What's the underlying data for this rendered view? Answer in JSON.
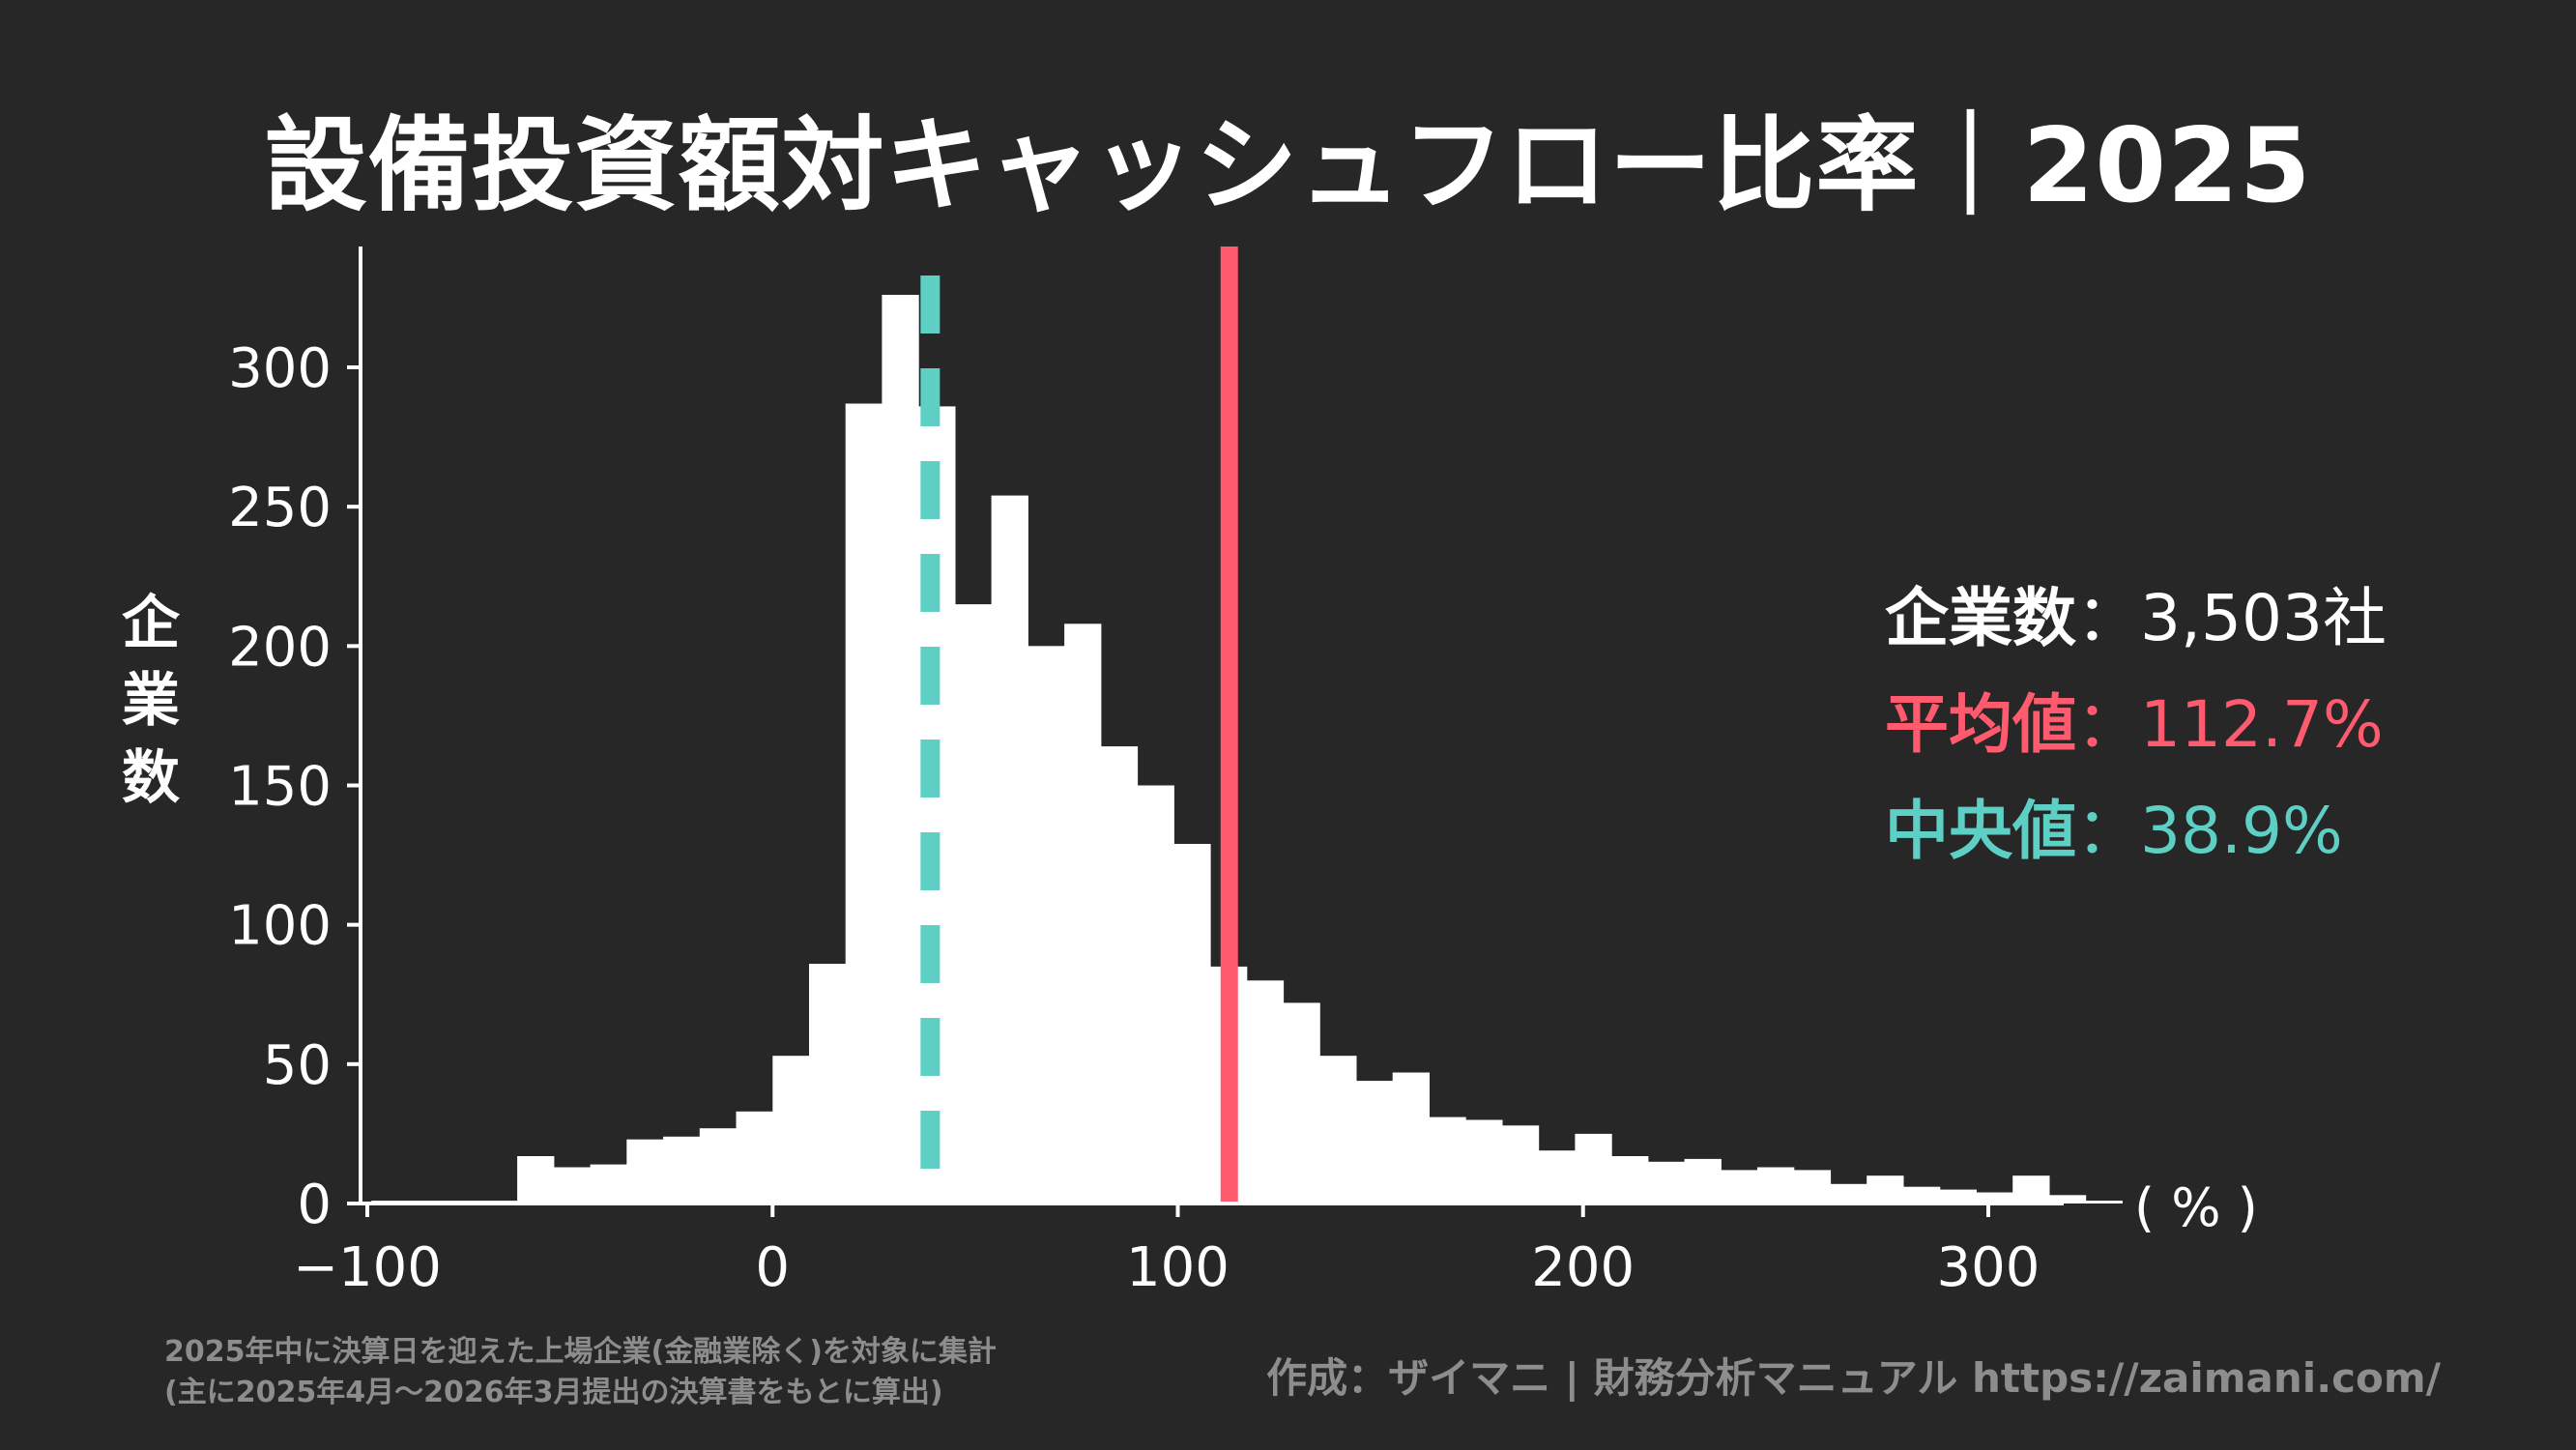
{
  "title": "設備投資額対キャッシュフロー比率｜2025",
  "chart_data": {
    "type": "bar",
    "xlabel": "( % )",
    "ylabel": "企業数",
    "xlim": [
      -100,
      310
    ],
    "ylim": [
      0,
      340
    ],
    "x_ticks": [
      "−100",
      "0",
      "100",
      "200",
      "300"
    ],
    "x_tick_values": [
      -100,
      0,
      100,
      200,
      300
    ],
    "y_ticks": [
      "0",
      "50",
      "100",
      "150",
      "200",
      "250",
      "300"
    ],
    "y_tick_values": [
      0,
      50,
      100,
      150,
      200,
      250,
      300
    ],
    "bin_width": 9,
    "bin_start": -99,
    "values": [
      1,
      1,
      1,
      1,
      17,
      13,
      14,
      23,
      24,
      27,
      33,
      53,
      86,
      287,
      326,
      286,
      215,
      254,
      200,
      208,
      164,
      150,
      129,
      85,
      80,
      72,
      53,
      44,
      47,
      31,
      30,
      28,
      19,
      25,
      17,
      15,
      16,
      12,
      13,
      12,
      7,
      10,
      6,
      5,
      4,
      10,
      3,
      1
    ],
    "mean": 112.7,
    "median": 38.9,
    "mean_color": "#ff5a6e",
    "median_color": "#5ecfc4",
    "bar_color": "#ffffff",
    "background": "#272727"
  },
  "stats": {
    "count_label": "企業数",
    "count_value": "：3,503社",
    "mean_label": "平均値",
    "mean_value": "：112.7%",
    "median_label": "中央値",
    "median_value": "：38.9%"
  },
  "note": {
    "line1": "2025年中に決算日を迎えた上場企業(金融業除く)を対象に集計",
    "line2": "(主に2025年4月〜2026年3月提出の決算書をもとに算出)"
  },
  "credit": "作成：ザイマニ | 財務分析マニュアル https://zaimani.com/"
}
